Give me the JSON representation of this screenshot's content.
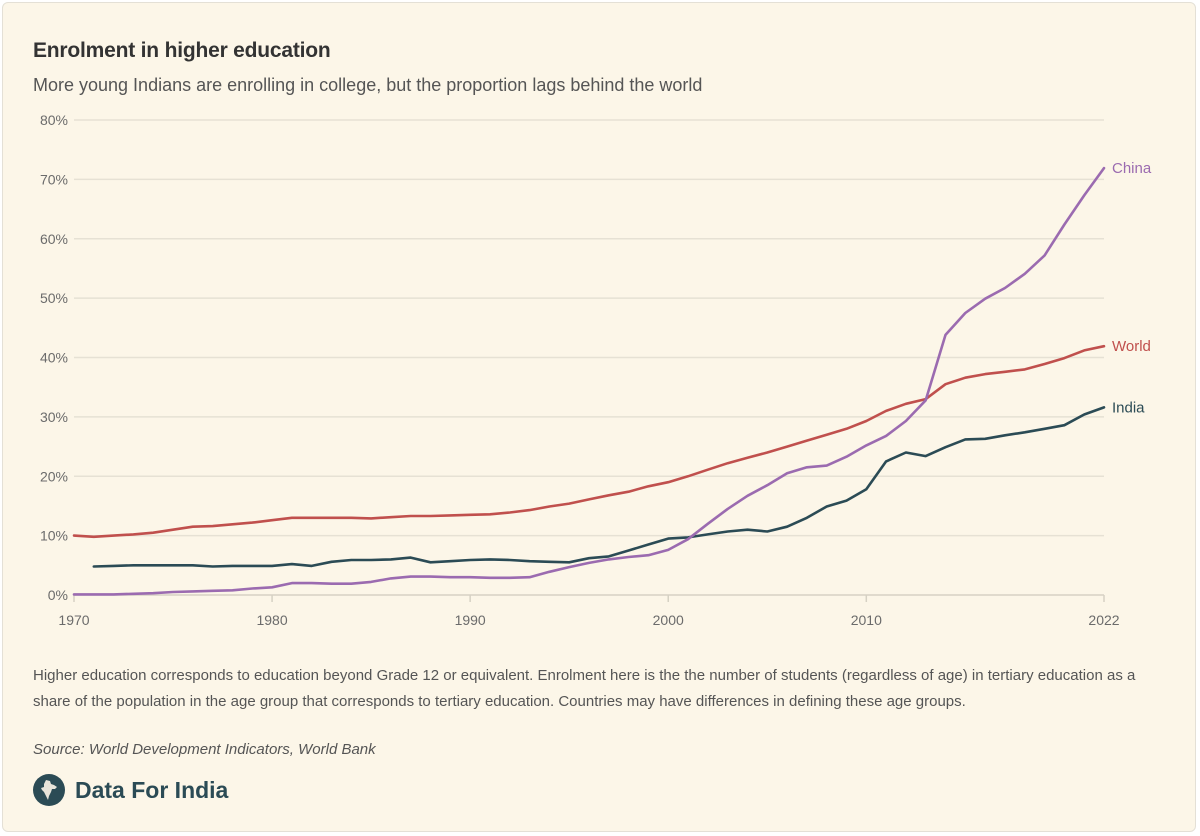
{
  "header": {
    "title": "Enrolment in higher education",
    "subtitle": "More young Indians are enrolling in college, but the proportion lags behind the world"
  },
  "footer": {
    "note": "Higher education corresponds to education beyond Grade 12 or equivalent. Enrolment here is the the number of students (regardless of age) in tertiary education as a share of the population in the age group that corresponds to tertiary education. Countries may have differences in defining these age groups.",
    "source": "Source: World Development Indicators, World Bank",
    "brand_name": "Data For India",
    "brand_icon": "india-map-icon"
  },
  "chart_data": {
    "type": "line",
    "title": "Enrolment in higher education",
    "subtitle": "More young Indians are enrolling in college, but the proportion lags behind the world",
    "xlabel": "",
    "ylabel": "",
    "xlim": [
      1970,
      2022
    ],
    "ylim": [
      0,
      80
    ],
    "grid": true,
    "legend": "direct-labels-right",
    "x_ticks": [
      1970,
      1980,
      1990,
      2000,
      2010,
      2022
    ],
    "x_tick_labels": [
      "1970",
      "1980",
      "1990",
      "2000",
      "2010",
      "2022"
    ],
    "y_ticks": [
      0,
      10,
      20,
      30,
      40,
      50,
      60,
      70,
      80
    ],
    "y_tick_labels": [
      "0%",
      "10%",
      "20%",
      "30%",
      "40%",
      "50%",
      "60%",
      "70%",
      "80%"
    ],
    "series": [
      {
        "name": "World",
        "color": "#c0504d",
        "start_year": 1970,
        "values": [
          10.0,
          9.8,
          10.0,
          10.2,
          10.5,
          11.0,
          11.5,
          11.6,
          11.9,
          12.2,
          12.6,
          13.0,
          13.0,
          13.0,
          13.0,
          12.9,
          13.1,
          13.3,
          13.3,
          13.4,
          13.5,
          13.6,
          13.9,
          14.3,
          14.9,
          15.4,
          16.1,
          16.8,
          17.4,
          18.3,
          19.0,
          20.0,
          21.1,
          22.2,
          23.1,
          24.0,
          25.0,
          26.0,
          27.0,
          28.0,
          29.3,
          31.0,
          32.2,
          33.0,
          35.5,
          36.6,
          37.2,
          37.6,
          38.0,
          38.9,
          39.9,
          41.2,
          41.9
        ]
      },
      {
        "name": "India",
        "color": "#2b4b55",
        "start_year": 1971,
        "values": [
          4.8,
          4.9,
          5.0,
          5.0,
          5.0,
          5.0,
          4.8,
          4.9,
          4.9,
          4.9,
          5.2,
          4.9,
          5.6,
          5.9,
          5.9,
          6.0,
          6.3,
          5.5,
          5.7,
          5.9,
          6.0,
          5.9,
          5.7,
          5.6,
          5.5,
          6.2,
          6.5,
          7.5,
          8.5,
          9.5,
          9.7,
          10.2,
          10.7,
          11.0,
          10.7,
          11.5,
          13.0,
          14.9,
          15.9,
          17.8,
          22.5,
          24.0,
          23.4,
          24.9,
          26.2,
          26.3,
          26.9,
          27.4,
          28.0,
          28.6,
          30.4,
          31.6
        ]
      },
      {
        "name": "China",
        "color": "#9b6bb0",
        "start_year": 1970,
        "values": [
          0.1,
          0.1,
          0.1,
          0.2,
          0.3,
          0.5,
          0.6,
          0.7,
          0.8,
          1.1,
          1.3,
          2.0,
          2.0,
          1.9,
          1.9,
          2.2,
          2.8,
          3.1,
          3.1,
          3.0,
          3.0,
          2.9,
          2.9,
          3.0,
          3.9,
          4.7,
          5.4,
          6.0,
          6.4,
          6.7,
          7.6,
          9.4,
          12.0,
          14.5,
          16.7,
          18.5,
          20.5,
          21.5,
          21.8,
          23.3,
          25.2,
          26.8,
          29.3,
          32.8,
          43.8,
          47.5,
          49.9,
          51.7,
          54.1,
          57.2,
          62.4,
          67.3,
          71.9
        ]
      }
    ]
  }
}
